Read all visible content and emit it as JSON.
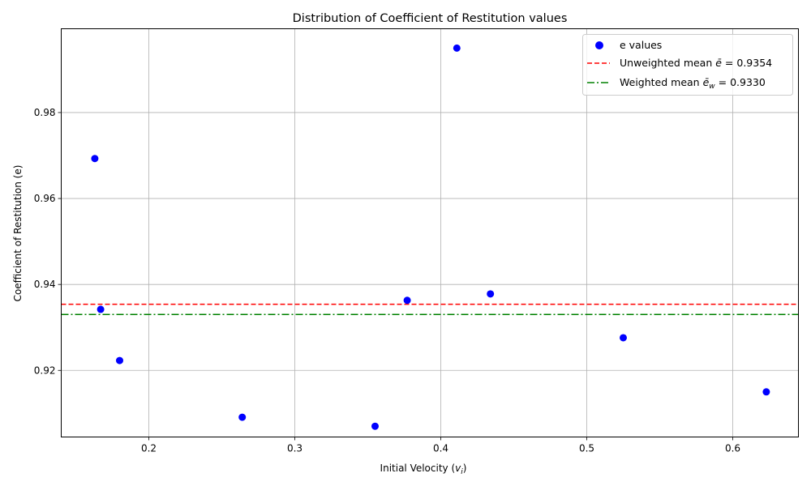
{
  "chart_data": {
    "type": "scatter",
    "title": "Distribution of Coefficient of Restitution values",
    "xlabel_main": "Initial Velocity (",
    "xlabel_var": "v",
    "xlabel_sub": "i",
    "xlabel_close": ")",
    "ylabel": "Coefficient of Restitution (e)",
    "xlim": [
      0.14,
      0.645
    ],
    "ylim": [
      0.9045,
      0.9995
    ],
    "x_ticks": [
      0.2,
      0.3,
      0.4,
      0.5,
      0.6
    ],
    "x_tick_labels": [
      "0.2",
      "0.3",
      "0.4",
      "0.5",
      "0.6"
    ],
    "y_ticks": [
      0.92,
      0.94,
      0.96,
      0.98
    ],
    "y_tick_labels": [
      "0.92",
      "0.94",
      "0.96",
      "0.98"
    ],
    "grid": true,
    "legend_position": "top-right",
    "series": [
      {
        "name": "e values",
        "color": "#0000ff",
        "x": [
          0.163,
          0.167,
          0.18,
          0.264,
          0.355,
          0.377,
          0.411,
          0.434,
          0.525,
          0.623
        ],
        "y": [
          0.9693,
          0.9342,
          0.9223,
          0.9091,
          0.907,
          0.9363,
          0.995,
          0.9378,
          0.9276,
          0.915
        ]
      }
    ],
    "reference_lines": [
      {
        "label_prefix": "Unweighted mean ",
        "label_var": "ē",
        "label_sub": "",
        "label_value": " = 0.9354",
        "y": 0.9354,
        "color": "#ff0000",
        "style": "dashed"
      },
      {
        "label_prefix": "Weighted mean ",
        "label_var": "ē",
        "label_sub": "w",
        "label_value": " = 0.9330",
        "y": 0.933,
        "color": "#008000",
        "style": "dashdot"
      }
    ]
  }
}
